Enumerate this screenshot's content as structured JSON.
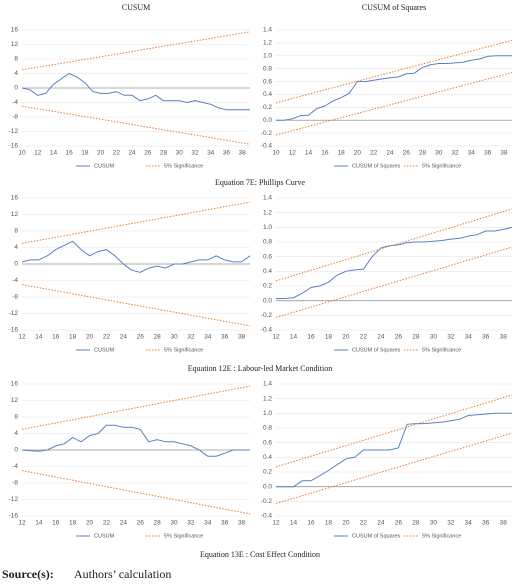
{
  "chart_data": [
    {
      "type": "line",
      "title": "CUSUM",
      "x": [
        10,
        11,
        12,
        13,
        14,
        15,
        16,
        17,
        18,
        19,
        20,
        21,
        22,
        23,
        24,
        25,
        26,
        27,
        28,
        29,
        30,
        31,
        32,
        33,
        34,
        35,
        36,
        37,
        38,
        39
      ],
      "xlim": [
        10,
        39
      ],
      "xticks": [
        10,
        12,
        14,
        16,
        18,
        20,
        22,
        24,
        26,
        28,
        30,
        32,
        34,
        36,
        38
      ],
      "ylim": [
        -16,
        16
      ],
      "yticks": [
        -16,
        -12,
        -8,
        -4,
        0,
        4,
        8,
        12,
        16
      ],
      "grid": true,
      "legend": "bottom",
      "series": [
        {
          "name": "CUSUM",
          "color": "#5b7fc6",
          "values": [
            0,
            -0.5,
            -2,
            -1.5,
            1,
            2.5,
            4,
            3,
            1.5,
            -1,
            -1.5,
            -1.5,
            -1,
            -2,
            -2,
            -3.5,
            -3,
            -2,
            -3.5,
            -3.5,
            -3.5,
            -4,
            -3.5,
            -4,
            -4.5,
            -5.5,
            -6,
            -6,
            -6,
            -6
          ]
        },
        {
          "name": "5% Significance",
          "color": "#ed7d31",
          "dash": true,
          "x": [
            10,
            39
          ],
          "values": [
            5,
            15.5
          ],
          "lower": [
            -5,
            -15.5
          ]
        }
      ]
    },
    {
      "type": "line",
      "title": "CUSUM of Squares",
      "x": [
        10,
        11,
        12,
        13,
        14,
        15,
        16,
        17,
        18,
        19,
        20,
        21,
        22,
        23,
        24,
        25,
        26,
        27,
        28,
        29,
        30,
        31,
        32,
        33,
        34,
        35,
        36,
        37,
        38,
        39
      ],
      "xlim": [
        10,
        39
      ],
      "xticks": [
        10,
        12,
        14,
        16,
        18,
        20,
        22,
        24,
        26,
        28,
        30,
        32,
        34,
        36,
        38
      ],
      "ylim": [
        -0.4,
        1.4
      ],
      "yticks": [
        -0.4,
        -0.2,
        {
          "value": 0,
          "label": "0.0"
        },
        0.2,
        0.4,
        0.6,
        0.8,
        {
          "value": 1,
          "label": "1.0"
        },
        1.2,
        1.4
      ],
      "grid": true,
      "legend": "bottom",
      "series": [
        {
          "name": "CUSUM of Squares",
          "color": "#5b7fc6",
          "values": [
            0,
            0,
            0.02,
            0.07,
            0.08,
            0.18,
            0.22,
            0.3,
            0.35,
            0.42,
            0.6,
            0.6,
            0.62,
            0.64,
            0.66,
            0.67,
            0.72,
            0.73,
            0.82,
            0.86,
            0.88,
            0.88,
            0.89,
            0.9,
            0.93,
            0.95,
            0.99,
            1,
            1,
            1
          ]
        },
        {
          "name": "5% Significance",
          "color": "#ed7d31",
          "dash": true,
          "x": [
            10,
            39
          ],
          "values": [
            0.27,
            1.24
          ],
          "lower": [
            -0.23,
            0.74
          ]
        }
      ]
    },
    {
      "type": "line",
      "x": [
        12,
        13,
        14,
        15,
        16,
        17,
        18,
        19,
        20,
        21,
        22,
        23,
        24,
        25,
        26,
        27,
        28,
        29,
        30,
        31,
        32,
        33,
        34,
        35,
        36,
        37,
        38,
        39
      ],
      "xlim": [
        12,
        39
      ],
      "xticks": [
        12,
        14,
        16,
        18,
        20,
        22,
        24,
        26,
        28,
        30,
        32,
        34,
        36,
        38
      ],
      "ylim": [
        -16,
        16
      ],
      "yticks": [
        -16,
        -12,
        -8,
        -4,
        0,
        4,
        8,
        12,
        16
      ],
      "grid": true,
      "legend": "bottom",
      "series": [
        {
          "name": "CUSUM",
          "color": "#5b7fc6",
          "values": [
            0.5,
            1,
            1,
            2,
            3.5,
            4.5,
            5.5,
            3.5,
            2,
            3,
            3.5,
            2,
            0,
            -1.5,
            -2,
            -1,
            -0.5,
            -1,
            0,
            0,
            0.5,
            1,
            1,
            2,
            1,
            0.5,
            0.5,
            2
          ]
        },
        {
          "name": "5% Significance",
          "color": "#ed7d31",
          "dash": true,
          "x": [
            12,
            39
          ],
          "values": [
            5,
            15
          ],
          "lower": [
            -5,
            -15
          ]
        }
      ]
    },
    {
      "type": "line",
      "x": [
        12,
        13,
        14,
        15,
        16,
        17,
        18,
        19,
        20,
        21,
        22,
        23,
        24,
        25,
        26,
        27,
        28,
        29,
        30,
        31,
        32,
        33,
        34,
        35,
        36,
        37,
        38,
        39
      ],
      "xlim": [
        12,
        39
      ],
      "xticks": [
        12,
        14,
        16,
        18,
        20,
        22,
        24,
        26,
        28,
        30,
        32,
        34,
        36,
        38
      ],
      "ylim": [
        -0.4,
        1.4
      ],
      "yticks": [
        -0.4,
        -0.2,
        {
          "value": 0,
          "label": "0.0"
        },
        0.2,
        0.4,
        0.6,
        0.8,
        {
          "value": 1,
          "label": "1.0"
        },
        1.2,
        1.4
      ],
      "grid": true,
      "legend": "bottom",
      "series": [
        {
          "name": "CUSUM of Squares",
          "color": "#5b7fc6",
          "values": [
            0.03,
            0.03,
            0.04,
            0.1,
            0.18,
            0.2,
            0.25,
            0.35,
            0.4,
            0.42,
            0.43,
            0.6,
            0.72,
            0.75,
            0.76,
            0.79,
            0.8,
            0.8,
            0.81,
            0.82,
            0.84,
            0.85,
            0.88,
            0.9,
            0.95,
            0.95,
            0.97,
            1
          ]
        },
        {
          "name": "5% Significance",
          "color": "#ed7d31",
          "dash": true,
          "x": [
            12,
            39
          ],
          "values": [
            0.27,
            1.25
          ],
          "lower": [
            -0.23,
            0.73
          ]
        }
      ]
    },
    {
      "type": "line",
      "x": [
        12,
        13,
        14,
        15,
        16,
        17,
        18,
        19,
        20,
        21,
        22,
        23,
        24,
        25,
        26,
        27,
        28,
        29,
        30,
        31,
        32,
        33,
        34,
        35,
        36,
        37,
        38,
        39
      ],
      "xlim": [
        12,
        39
      ],
      "xticks": [
        12,
        14,
        16,
        18,
        20,
        22,
        24,
        26,
        28,
        30,
        32,
        34,
        36,
        38
      ],
      "ylim": [
        -16,
        16
      ],
      "yticks": [
        -16,
        -12,
        -8,
        -4,
        0,
        4,
        8,
        12,
        16
      ],
      "grid": true,
      "legend": "bottom",
      "series": [
        {
          "name": "CUSUM",
          "color": "#5b7fc6",
          "values": [
            0,
            -0.2,
            -0.3,
            0,
            1,
            1.5,
            3,
            2,
            3.5,
            4,
            6,
            6,
            5.5,
            5.5,
            5,
            2,
            2.5,
            2,
            2,
            1.5,
            1,
            0,
            -1.5,
            -1.5,
            -0.8,
            0,
            0,
            0
          ]
        },
        {
          "name": "5% Significance",
          "color": "#ed7d31",
          "dash": true,
          "x": [
            12,
            39
          ],
          "values": [
            5,
            15.5
          ],
          "lower": [
            -5,
            -15.5
          ]
        }
      ]
    },
    {
      "type": "line",
      "x": [
        12,
        13,
        14,
        15,
        16,
        17,
        18,
        19,
        20,
        21,
        22,
        23,
        24,
        25,
        26,
        27,
        28,
        29,
        30,
        31,
        32,
        33,
        34,
        35,
        36,
        37,
        38,
        39
      ],
      "xlim": [
        12,
        39
      ],
      "xticks": [
        12,
        14,
        16,
        18,
        20,
        22,
        24,
        26,
        28,
        30,
        32,
        34,
        36,
        38
      ],
      "ylim": [
        -0.4,
        1.4
      ],
      "yticks": [
        -0.4,
        -0.2,
        {
          "value": 0,
          "label": "0.0"
        },
        0.2,
        0.4,
        0.6,
        0.8,
        {
          "value": 1,
          "label": "1.0"
        },
        1.2,
        1.4
      ],
      "grid": true,
      "legend": "bottom",
      "series": [
        {
          "name": "CUSUM of Squares",
          "color": "#5b7fc6",
          "values": [
            0,
            0,
            0,
            0.08,
            0.08,
            0.15,
            0.22,
            0.3,
            0.38,
            0.4,
            0.5,
            0.5,
            0.5,
            0.5,
            0.53,
            0.85,
            0.86,
            0.86,
            0.87,
            0.88,
            0.9,
            0.92,
            0.97,
            0.98,
            0.99,
            1,
            1,
            1
          ]
        },
        {
          "name": "5% Significance",
          "color": "#ed7d31",
          "dash": true,
          "x": [
            12,
            39
          ],
          "values": [
            0.27,
            1.25
          ],
          "lower": [
            -0.23,
            0.73
          ]
        }
      ]
    }
  ],
  "captions": [
    "Equation 7E: Phillips Curve",
    "Equation 12E : Labour-led Market Condition",
    "Equation 13E : Cost Effect Condition"
  ],
  "source": {
    "label": "Source(s):",
    "text": "Authors’ calculation"
  }
}
